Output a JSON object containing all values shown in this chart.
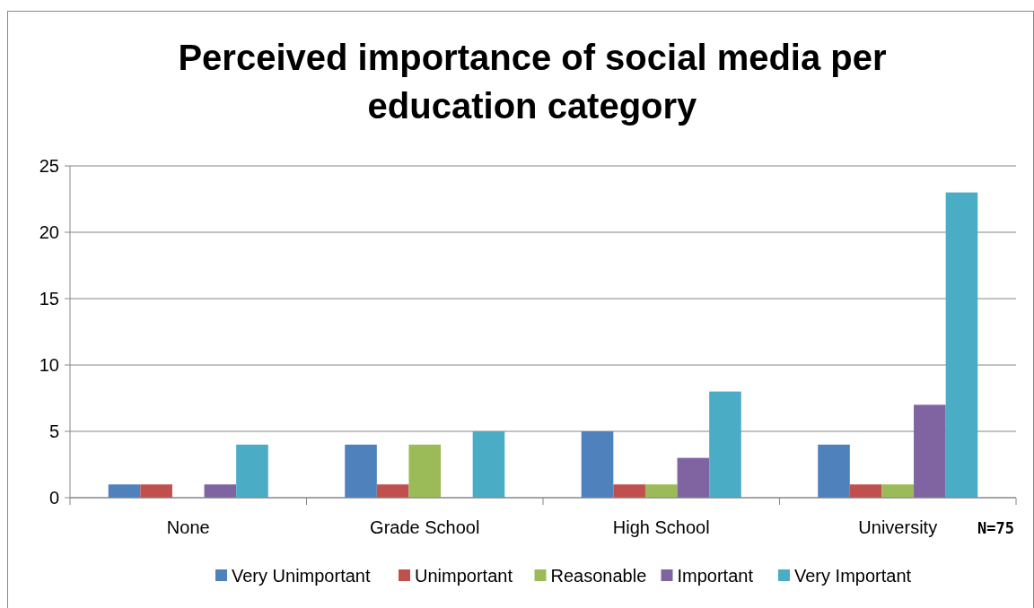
{
  "chart_data": {
    "type": "bar",
    "title": "Perceived importance of social media per education category",
    "categories": [
      "None",
      "Grade School",
      "High School",
      "University"
    ],
    "series": [
      {
        "name": "Very Unimportant",
        "color": "#4f81bd",
        "values": [
          1,
          4,
          5,
          4
        ]
      },
      {
        "name": "Unimportant",
        "color": "#c0504d",
        "values": [
          1,
          1,
          1,
          1
        ]
      },
      {
        "name": "Reasonable",
        "color": "#9bbb59",
        "values": [
          0,
          4,
          1,
          1
        ]
      },
      {
        "name": "Important",
        "color": "#8064a2",
        "values": [
          1,
          0,
          3,
          7
        ]
      },
      {
        "name": "Very Important",
        "color": "#4bacc6",
        "values": [
          4,
          5,
          8,
          23
        ]
      }
    ],
    "ylim": [
      0,
      25
    ],
    "yticks": [
      0,
      5,
      10,
      15,
      20,
      25
    ],
    "grid": "y",
    "legend": "bottom",
    "annotations": [
      "N=75"
    ]
  }
}
